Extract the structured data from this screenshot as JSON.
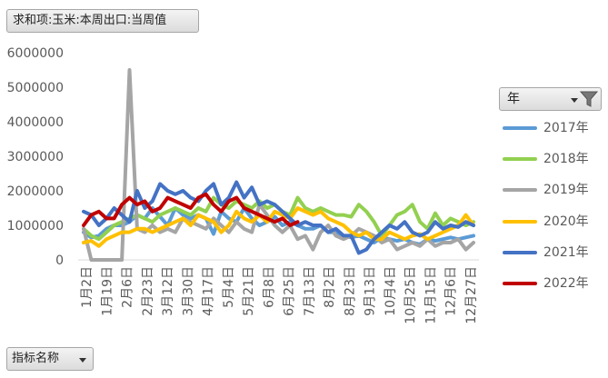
{
  "value_field": {
    "label": "求和项:玉米:本周出口:当周值"
  },
  "legend_field": {
    "label": "年"
  },
  "axis_field": {
    "label": "指标名称"
  },
  "icons": {
    "dropdown": "chevron-down-icon",
    "filter": "filter-icon"
  },
  "chart_data": {
    "type": "line",
    "title": "",
    "xlabel": "",
    "ylabel": "",
    "ylim": [
      0,
      6000000
    ],
    "yticks": [
      "0",
      "1000000",
      "2000000",
      "3000000",
      "4000000",
      "5000000",
      "6000000"
    ],
    "grid": false,
    "legend_position": "right",
    "x_tick_labels": [
      "1月2日",
      "1月19日",
      "2月6日",
      "2月23日",
      "3月12日",
      "3月30日",
      "4月17日",
      "5月4日",
      "5月21日",
      "6月8日",
      "6月25日",
      "7月13日",
      "8月2日",
      "8月23日",
      "9月13日",
      "10月4日",
      "10月25日",
      "11月15日",
      "12月6日",
      "12月27日"
    ],
    "series": [
      {
        "name": "2017年",
        "color": "#5b9bd5",
        "values": [
          800000,
          650000,
          700000,
          900000,
          1000000,
          1000000,
          1100000,
          1300000,
          1200000,
          1500000,
          1250000,
          1000000,
          1500000,
          1300000,
          1200000,
          1300000,
          1200000,
          750000,
          1400000,
          1200000,
          1100000,
          1500000,
          1200000,
          1000000,
          1100000,
          1250000,
          1000000,
          1100000,
          1000000,
          900000,
          900000,
          1000000,
          800000,
          800000,
          700000,
          650000,
          700000,
          600000,
          500000,
          650000,
          600000,
          550000,
          600000,
          500000,
          450000,
          600000,
          550000,
          600000,
          650000,
          600000,
          650000,
          700000
        ]
      },
      {
        "name": "2018年",
        "color": "#92d050",
        "values": [
          900000,
          700000,
          600000,
          800000,
          1000000,
          1100000,
          1200000,
          1300000,
          1200000,
          1100000,
          1300000,
          1400000,
          1500000,
          1400000,
          1300000,
          1500000,
          1400000,
          1800000,
          1600000,
          1500000,
          1700000,
          1600000,
          1500000,
          1700000,
          1500000,
          1600000,
          1400000,
          1300000,
          1800000,
          1500000,
          1400000,
          1500000,
          1400000,
          1300000,
          1300000,
          1250000,
          1600000,
          1400000,
          1100000,
          700000,
          1000000,
          1300000,
          1400000,
          1600000,
          1100000,
          900000,
          1350000,
          1000000,
          1200000,
          1100000,
          1000000,
          1100000
        ]
      },
      {
        "name": "2019年",
        "color": "#a5a5a5",
        "values": [
          900000,
          0,
          0,
          0,
          0,
          0,
          5500000,
          900000,
          800000,
          1000000,
          800000,
          900000,
          800000,
          1200000,
          1100000,
          1000000,
          900000,
          1200000,
          1000000,
          800000,
          1100000,
          900000,
          800000,
          1600000,
          1300000,
          1000000,
          800000,
          1000000,
          600000,
          700000,
          300000,
          800000,
          1000000,
          700000,
          600000,
          700000,
          900000,
          800000,
          700000,
          500000,
          600000,
          300000,
          400000,
          500000,
          400000,
          600000,
          400000,
          500000,
          500000,
          600000,
          300000,
          500000
        ]
      },
      {
        "name": "2020年",
        "color": "#ffc000",
        "values": [
          500000,
          550000,
          400000,
          600000,
          700000,
          800000,
          800000,
          900000,
          900000,
          800000,
          900000,
          1000000,
          1100000,
          1200000,
          1000000,
          1300000,
          1200000,
          1100000,
          800000,
          1000000,
          1400000,
          1200000,
          1100000,
          1300000,
          1100000,
          1400000,
          1300000,
          1200000,
          1500000,
          1400000,
          1300000,
          1400000,
          1200000,
          1100000,
          1000000,
          800000,
          700000,
          800000,
          600000,
          600000,
          800000,
          700000,
          600000,
          700000,
          750000,
          600000,
          700000,
          800000,
          900000,
          1000000,
          1300000,
          1000000
        ]
      },
      {
        "name": "2021年",
        "color": "#4472c4",
        "values": [
          1400000,
          1300000,
          1000000,
          1200000,
          1500000,
          1300000,
          1100000,
          2000000,
          1500000,
          1700000,
          2200000,
          2000000,
          1900000,
          2000000,
          1800000,
          1700000,
          2000000,
          2200000,
          1600000,
          1800000,
          2250000,
          1800000,
          2100000,
          1600000,
          1700000,
          1600000,
          1400000,
          1200000,
          1000000,
          1100000,
          1000000,
          1000000,
          800000,
          900000,
          700000,
          700000,
          200000,
          300000,
          600000,
          800000,
          1000000,
          900000,
          1100000,
          800000,
          700000,
          800000,
          1100000,
          900000,
          1000000,
          950000,
          1100000,
          1000000
        ]
      },
      {
        "name": "2022年",
        "color": "#c00000",
        "values": [
          1000000,
          1300000,
          1400000,
          1200000,
          1200000,
          1600000,
          1800000,
          1600000,
          1700000,
          1400000,
          1500000,
          1800000,
          1700000,
          1600000,
          1500000,
          1800000,
          1900000,
          1600000,
          1400000,
          1700000,
          1800000,
          1500000,
          1400000,
          1300000,
          1200000,
          1100000,
          1200000,
          1000000,
          1100000
        ]
      }
    ]
  }
}
